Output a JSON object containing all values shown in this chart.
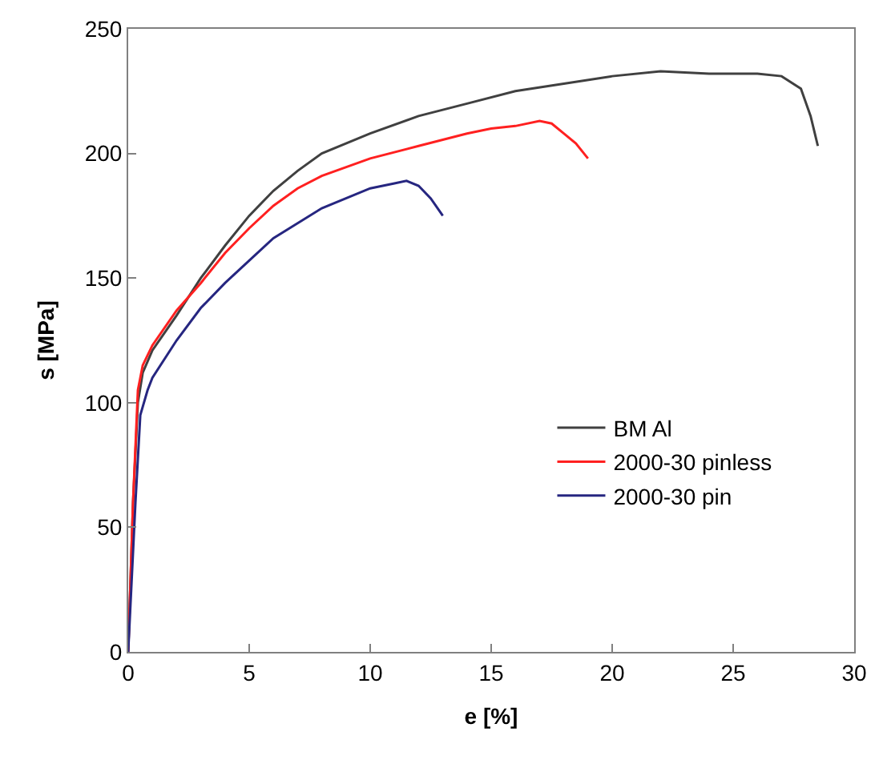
{
  "chart_data": {
    "type": "line",
    "xlabel": "e [%]",
    "ylabel": "s [MPa]",
    "xlim": [
      0,
      30
    ],
    "ylim": [
      0,
      250
    ],
    "xticks": [
      0,
      5,
      10,
      15,
      20,
      25,
      30
    ],
    "yticks": [
      0,
      50,
      100,
      150,
      200,
      250
    ],
    "legend": "right",
    "marker": "none",
    "line_style": "solid",
    "series": [
      {
        "name": "BM Al",
        "color": "#404040",
        "x": [
          0,
          0.2,
          0.4,
          0.6,
          1,
          2,
          3,
          4,
          5,
          6,
          7,
          8,
          10,
          12,
          14,
          16,
          18,
          20,
          22,
          24,
          26,
          27,
          27.8,
          28.2,
          28.5
        ],
        "values": [
          0,
          60,
          100,
          112,
          121,
          135,
          150,
          163,
          175,
          185,
          193,
          200,
          208,
          215,
          220,
          225,
          228,
          231,
          233,
          232,
          232,
          231,
          226,
          215,
          203
        ]
      },
      {
        "name": "2000-30 pinless",
        "color": "#ff2020",
        "x": [
          0,
          0.2,
          0.4,
          0.6,
          1,
          2,
          3,
          4,
          5,
          6,
          7,
          8,
          10,
          12,
          14,
          15,
          16,
          17,
          17.5,
          18,
          18.5,
          19
        ],
        "values": [
          0,
          60,
          105,
          115,
          123,
          137,
          148,
          160,
          170,
          179,
          186,
          191,
          198,
          203,
          208,
          210,
          211,
          213,
          212,
          208,
          204,
          198
        ]
      },
      {
        "name": "2000-30 pin",
        "color": "#262680",
        "x": [
          0,
          0.3,
          0.5,
          0.8,
          1,
          2,
          3,
          4,
          5,
          6,
          7,
          8,
          9,
          10,
          11,
          11.5,
          12,
          12.5,
          13
        ],
        "values": [
          0,
          60,
          95,
          105,
          110,
          125,
          138,
          148,
          157,
          166,
          172,
          178,
          182,
          186,
          188,
          189,
          187,
          182,
          175
        ]
      }
    ]
  }
}
